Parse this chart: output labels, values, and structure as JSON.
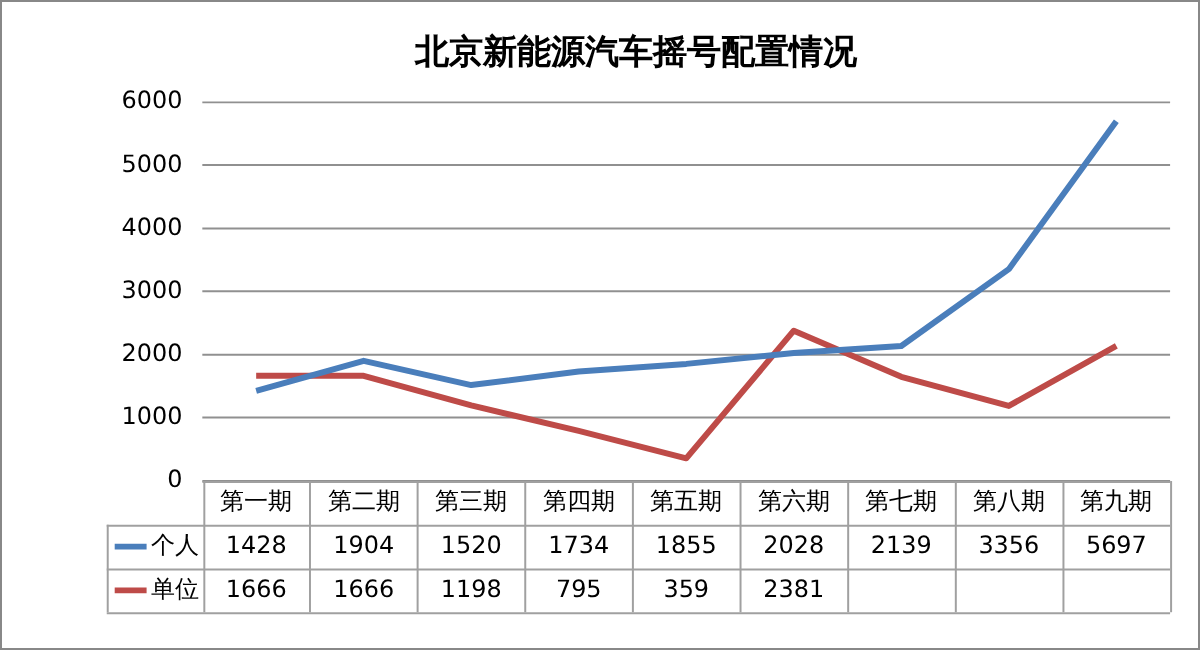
{
  "chart_data": {
    "type": "line",
    "title": "北京新能源汽车摇号配置情况",
    "categories": [
      "第一期",
      "第二期",
      "第三期",
      "第四期",
      "第五期",
      "第六期",
      "第七期",
      "第八期",
      "第九期"
    ],
    "series": [
      {
        "name": "个人",
        "color": "#4a7ebb",
        "values": [
          1428,
          1904,
          1520,
          1734,
          1855,
          2028,
          2139,
          3356,
          5697
        ],
        "value_labels": [
          "1428",
          "1904",
          "1520",
          "1734",
          "1855",
          "2028",
          "2139",
          "3356",
          "5697"
        ]
      },
      {
        "name": "单位",
        "color": "#be4b48",
        "values": [
          1666,
          1666,
          1198,
          795,
          359,
          2381,
          1650,
          1190,
          2140
        ],
        "value_labels": [
          "1666",
          "1666",
          "1198",
          "795",
          "359",
          "2381",
          null,
          null,
          null
        ]
      }
    ],
    "ylim": [
      0,
      6000
    ],
    "yticks": [
      0,
      1000,
      2000,
      3000,
      4000,
      5000,
      6000
    ],
    "grid": "y",
    "legend": "bottom left",
    "marker": "none",
    "line_style": "solid"
  }
}
